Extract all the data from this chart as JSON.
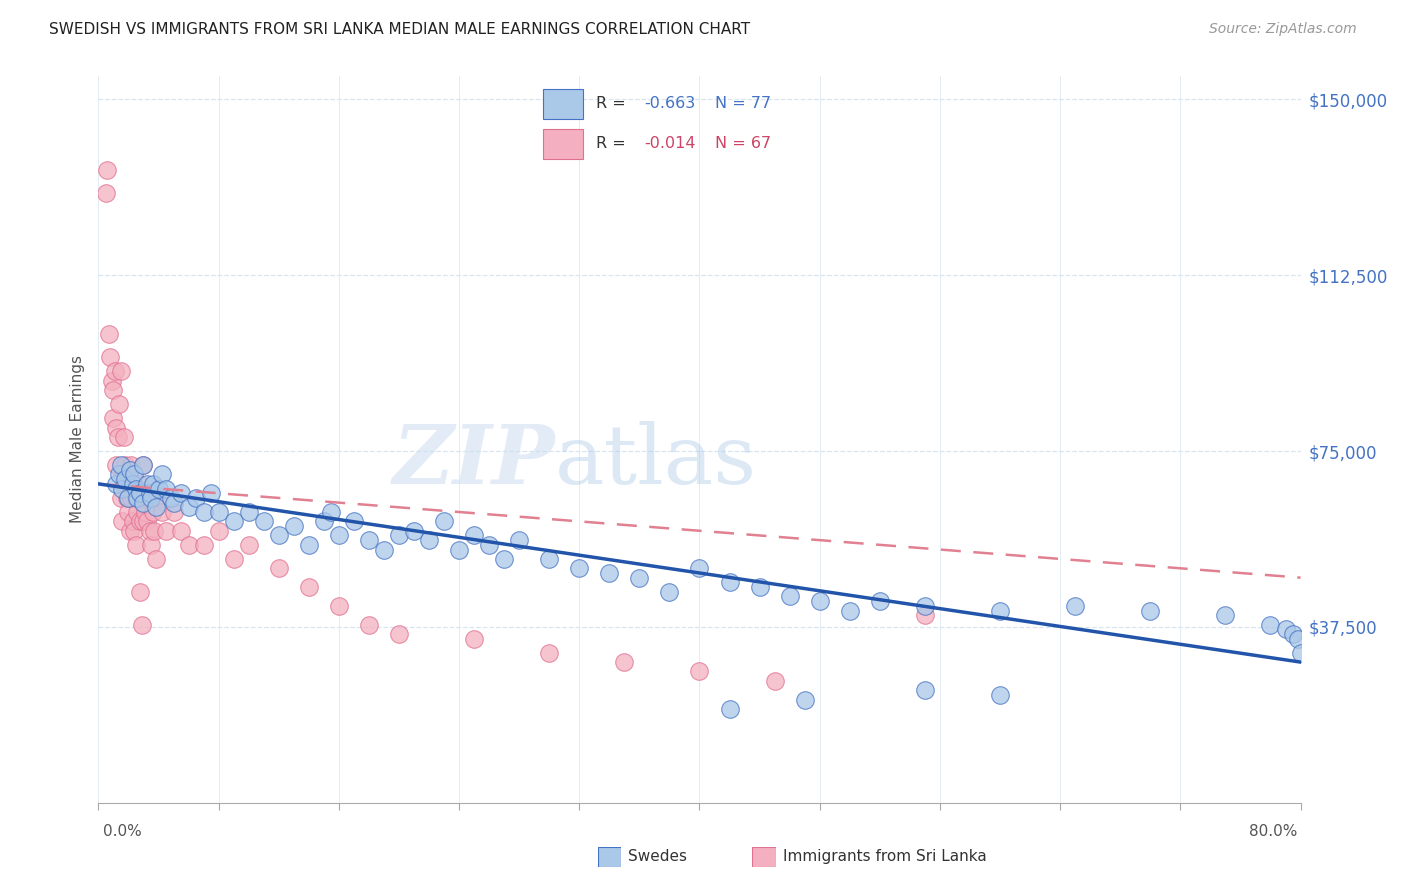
{
  "title": "SWEDISH VS IMMIGRANTS FROM SRI LANKA MEDIAN MALE EARNINGS CORRELATION CHART",
  "source": "Source: ZipAtlas.com",
  "ylabel": "Median Male Earnings",
  "yticks": [
    0,
    37500,
    75000,
    112500,
    150000
  ],
  "ytick_labels": [
    "",
    "$37,500",
    "$75,000",
    "$112,500",
    "$150,000"
  ],
  "xmin": 0.0,
  "xmax": 80.0,
  "ymin": 0,
  "ymax": 155000,
  "swedes_color": "#aac8e8",
  "swedes_edge_color": "#4472c4",
  "sri_lanka_color": "#f4b0c0",
  "sri_lanka_edge_color": "#e07090",
  "swedes_line_color": "#2255aa",
  "sri_lanka_line_color": "#e08090",
  "R_swedes": -0.663,
  "N_swedes": 77,
  "R_sri_lanka": -0.014,
  "N_sri_lanka": 67,
  "watermark_zip": "ZIP",
  "watermark_atlas": "atlas",
  "background_color": "#ffffff",
  "grid_color": "#d8e4f0",
  "title_color": "#222222",
  "source_color": "#999999",
  "ylabel_color": "#555555",
  "swedes_x": [
    1.2,
    1.4,
    1.5,
    1.6,
    1.8,
    2.0,
    2.1,
    2.3,
    2.4,
    2.5,
    2.6,
    2.8,
    3.0,
    3.0,
    3.2,
    3.4,
    3.5,
    3.6,
    3.8,
    4.0,
    4.2,
    4.5,
    4.8,
    5.0,
    5.5,
    6.0,
    6.5,
    7.0,
    7.5,
    8.0,
    9.0,
    10.0,
    11.0,
    12.0,
    13.0,
    14.0,
    15.0,
    15.5,
    16.0,
    17.0,
    18.0,
    19.0,
    20.0,
    21.0,
    22.0,
    23.0,
    24.0,
    25.0,
    26.0,
    27.0,
    28.0,
    30.0,
    32.0,
    34.0,
    36.0,
    38.0,
    40.0,
    42.0,
    44.0,
    46.0,
    48.0,
    50.0,
    52.0,
    55.0,
    60.0,
    65.0,
    70.0,
    75.0,
    78.0,
    79.0,
    79.5,
    79.8,
    80.0,
    42.0,
    47.0,
    55.0,
    60.0
  ],
  "swedes_y": [
    68000,
    70000,
    72000,
    67000,
    69000,
    65000,
    71000,
    68000,
    70000,
    67000,
    65000,
    66000,
    72000,
    64000,
    68000,
    66000,
    65000,
    68000,
    63000,
    67000,
    70000,
    67000,
    65000,
    64000,
    66000,
    63000,
    65000,
    62000,
    66000,
    62000,
    60000,
    62000,
    60000,
    57000,
    59000,
    55000,
    60000,
    62000,
    57000,
    60000,
    56000,
    54000,
    57000,
    58000,
    56000,
    60000,
    54000,
    57000,
    55000,
    52000,
    56000,
    52000,
    50000,
    49000,
    48000,
    45000,
    50000,
    47000,
    46000,
    44000,
    43000,
    41000,
    43000,
    42000,
    41000,
    42000,
    41000,
    40000,
    38000,
    37000,
    36000,
    35000,
    32000,
    20000,
    22000,
    24000,
    23000
  ],
  "sri_lanka_x": [
    0.5,
    0.6,
    0.7,
    0.8,
    0.9,
    1.0,
    1.0,
    1.1,
    1.2,
    1.2,
    1.3,
    1.4,
    1.5,
    1.5,
    1.6,
    1.6,
    1.7,
    1.8,
    1.8,
    1.9,
    2.0,
    2.0,
    2.1,
    2.1,
    2.2,
    2.2,
    2.3,
    2.4,
    2.5,
    2.5,
    2.6,
    2.7,
    2.8,
    2.8,
    2.9,
    3.0,
    3.0,
    3.0,
    3.1,
    3.2,
    3.3,
    3.4,
    3.5,
    3.6,
    3.7,
    3.8,
    4.0,
    4.2,
    4.5,
    5.0,
    5.5,
    6.0,
    7.0,
    8.0,
    9.0,
    10.0,
    12.0,
    14.0,
    16.0,
    18.0,
    20.0,
    25.0,
    30.0,
    35.0,
    40.0,
    45.0,
    55.0
  ],
  "sri_lanka_y": [
    130000,
    135000,
    100000,
    95000,
    90000,
    88000,
    82000,
    92000,
    80000,
    72000,
    78000,
    85000,
    65000,
    92000,
    70000,
    60000,
    78000,
    68000,
    72000,
    65000,
    70000,
    62000,
    68000,
    58000,
    65000,
    72000,
    60000,
    58000,
    65000,
    55000,
    62000,
    68000,
    60000,
    45000,
    38000,
    72000,
    65000,
    60000,
    62000,
    60000,
    65000,
    58000,
    55000,
    62000,
    58000,
    52000,
    65000,
    62000,
    58000,
    62000,
    58000,
    55000,
    55000,
    58000,
    52000,
    55000,
    50000,
    46000,
    42000,
    38000,
    36000,
    35000,
    32000,
    30000,
    28000,
    26000,
    40000
  ]
}
